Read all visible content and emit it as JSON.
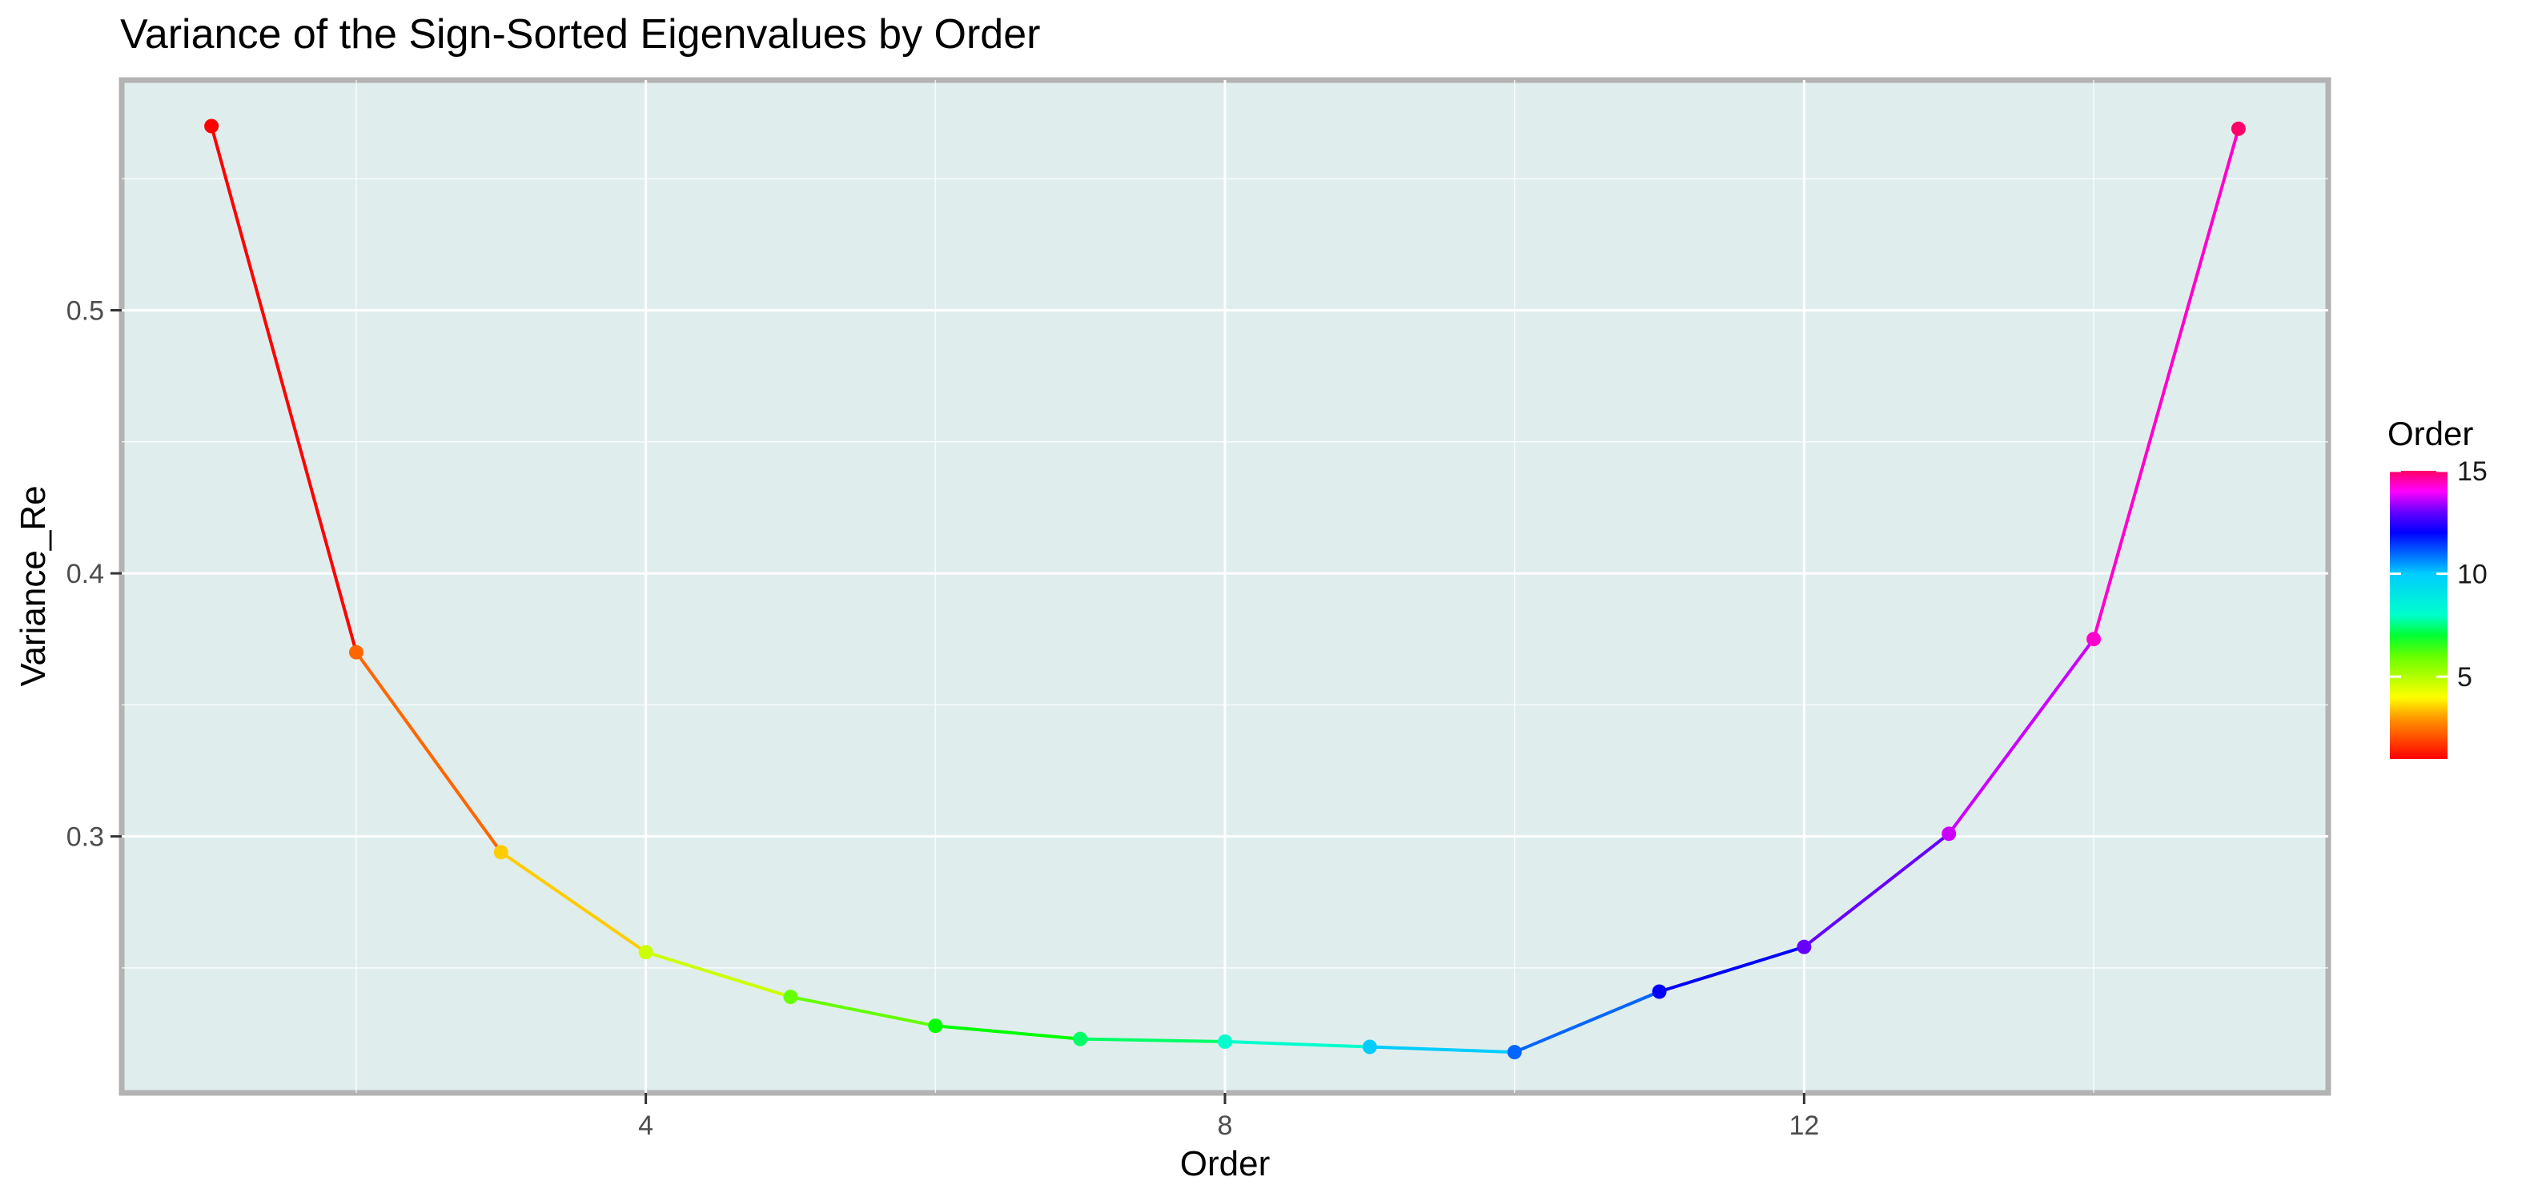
{
  "chart_data": {
    "type": "line",
    "title": "Variance of the Sign-Sorted Eigenvalues by Order",
    "xlabel": "Order",
    "ylabel": "Variance_Re",
    "xlim": [
      0.38,
      15.62
    ],
    "ylim": [
      0.2025,
      0.5875
    ],
    "x_ticks": [
      4,
      8,
      12
    ],
    "y_ticks": [
      0.3,
      0.4,
      0.5
    ],
    "x_tick_labels": [
      "4",
      "8",
      "12"
    ],
    "y_tick_labels": [
      "0.3",
      "0.4",
      "0.5"
    ],
    "grid": true,
    "panel_background": "#e0eded",
    "panel_border": "#b3b3b3",
    "grid_color": "#ffffff",
    "color_by": "Order",
    "x": [
      1,
      2,
      3,
      4,
      5,
      6,
      7,
      8,
      9,
      10,
      11,
      12,
      13,
      14,
      15
    ],
    "values": [
      0.57,
      0.37,
      0.294,
      0.256,
      0.239,
      0.228,
      0.223,
      0.222,
      0.22,
      0.218,
      0.241,
      0.258,
      0.301,
      0.375,
      0.569
    ],
    "point_colors": [
      "#ff0000",
      "#ff6600",
      "#ffcc00",
      "#ccff00",
      "#66ff00",
      "#00ff00",
      "#00ff66",
      "#00ffcc",
      "#00ccff",
      "#0066ff",
      "#0000ff",
      "#6600ff",
      "#cc00ff",
      "#ff00cc",
      "#ff0066"
    ],
    "legend": {
      "title": "Order",
      "position": "right",
      "range": [
        1,
        15
      ],
      "breaks": [
        5,
        10,
        15
      ],
      "break_labels": [
        "5",
        "10",
        "15"
      ]
    }
  }
}
